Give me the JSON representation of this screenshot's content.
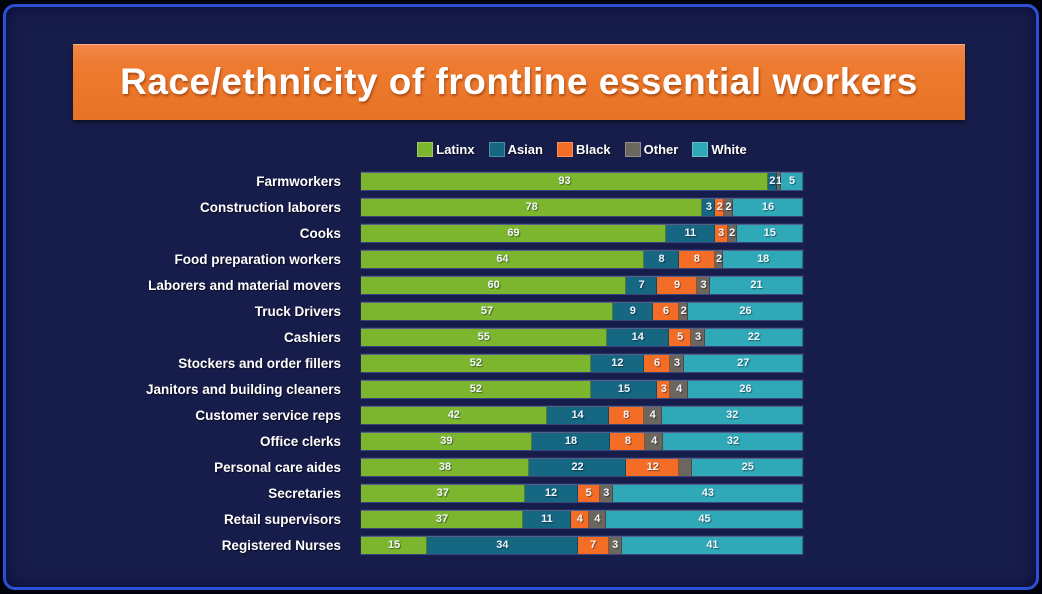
{
  "title": {
    "text": "Race/ethnicity of frontline essential workers"
  },
  "colors": {
    "panel_bg": "#171d4b",
    "frame_border": "#2b50d6",
    "banner_bg": "#ed7a2e",
    "latinx": "#7cb62f",
    "asian": "#156782",
    "black": "#f36d26",
    "other": "#6b675e",
    "white": "#2fa9b8"
  },
  "chart_data": {
    "type": "bar",
    "stacked": true,
    "orientation": "horizontal",
    "unit": "percent",
    "xlim": [
      0,
      100
    ],
    "grid": false,
    "legend_position": "top-center",
    "series": [
      {
        "name": "Latinx",
        "color": "#7cb62f"
      },
      {
        "name": "Asian",
        "color": "#156782"
      },
      {
        "name": "Black",
        "color": "#f36d26"
      },
      {
        "name": "Other",
        "color": "#6b675e"
      },
      {
        "name": "White",
        "color": "#2fa9b8"
      }
    ],
    "rows": [
      {
        "category": "Farmworkers",
        "values": [
          93,
          2,
          0,
          1,
          5
        ],
        "labels": [
          "93",
          "2",
          "",
          "1",
          "5"
        ]
      },
      {
        "category": "Construction laborers",
        "values": [
          78,
          3,
          2,
          2,
          16
        ],
        "labels": [
          "78",
          "3",
          "2",
          "2",
          "16"
        ]
      },
      {
        "category": "Cooks",
        "values": [
          69,
          11,
          3,
          2,
          15
        ],
        "labels": [
          "69",
          "11",
          "3",
          "2",
          "15"
        ]
      },
      {
        "category": "Food preparation workers",
        "values": [
          64,
          8,
          8,
          2,
          18
        ],
        "labels": [
          "64",
          "8",
          "8",
          "2",
          "18"
        ]
      },
      {
        "category": "Laborers and material movers",
        "values": [
          60,
          7,
          9,
          3,
          21
        ],
        "labels": [
          "60",
          "7",
          "9",
          "3",
          "21"
        ]
      },
      {
        "category": "Truck Drivers",
        "values": [
          57,
          9,
          6,
          2,
          26
        ],
        "labels": [
          "57",
          "9",
          "6",
          "2",
          "26"
        ]
      },
      {
        "category": "Cashiers",
        "values": [
          55,
          14,
          5,
          3,
          22
        ],
        "labels": [
          "55",
          "14",
          "5",
          "3",
          "22"
        ]
      },
      {
        "category": "Stockers and order fillers",
        "values": [
          52,
          12,
          6,
          3,
          27
        ],
        "labels": [
          "52",
          "12",
          "6",
          "3",
          "27"
        ]
      },
      {
        "category": "Janitors and building cleaners",
        "values": [
          52,
          15,
          3,
          4,
          26
        ],
        "labels": [
          "52",
          "15",
          "3",
          "4",
          "26"
        ]
      },
      {
        "category": "Customer service reps",
        "values": [
          42,
          14,
          8,
          4,
          32
        ],
        "labels": [
          "42",
          "14",
          "8",
          "4",
          "32"
        ]
      },
      {
        "category": "Office clerks",
        "values": [
          39,
          18,
          8,
          4,
          32
        ],
        "labels": [
          "39",
          "18",
          "8",
          "4",
          "32"
        ]
      },
      {
        "category": "Personal care aides",
        "values": [
          38,
          22,
          12,
          3,
          25
        ],
        "labels": [
          "38",
          "22",
          "12",
          "",
          "25"
        ]
      },
      {
        "category": "Secretaries",
        "values": [
          37,
          12,
          5,
          3,
          43
        ],
        "labels": [
          "37",
          "12",
          "5",
          "3",
          "43"
        ]
      },
      {
        "category": "Retail supervisors",
        "values": [
          37,
          11,
          4,
          4,
          45
        ],
        "labels": [
          "37",
          "11",
          "4",
          "4",
          "45"
        ]
      },
      {
        "category": "Registered Nurses",
        "values": [
          15,
          34,
          7,
          3,
          41
        ],
        "labels": [
          "15",
          "34",
          "7",
          "3",
          "41"
        ]
      }
    ]
  }
}
